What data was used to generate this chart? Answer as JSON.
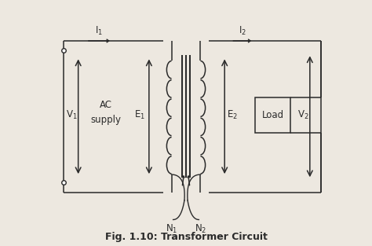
{
  "bg_color": "#ede8e0",
  "line_color": "#2a2a2a",
  "title": "Fig. 1.10: Transformer Circuit",
  "title_fontsize": 9,
  "labels": {
    "V1": "V$_1$",
    "V2": "V$_2$",
    "E1": "E$_1$",
    "E2": "E$_2$",
    "I1": "I$_1$",
    "I2": "I$_2$",
    "N1": "N$_1$",
    "N2": "N$_2$",
    "AC": "AC",
    "supply": "supply",
    "Load": "Load"
  },
  "xlim": [
    0,
    10
  ],
  "ylim": [
    0,
    7.5
  ]
}
